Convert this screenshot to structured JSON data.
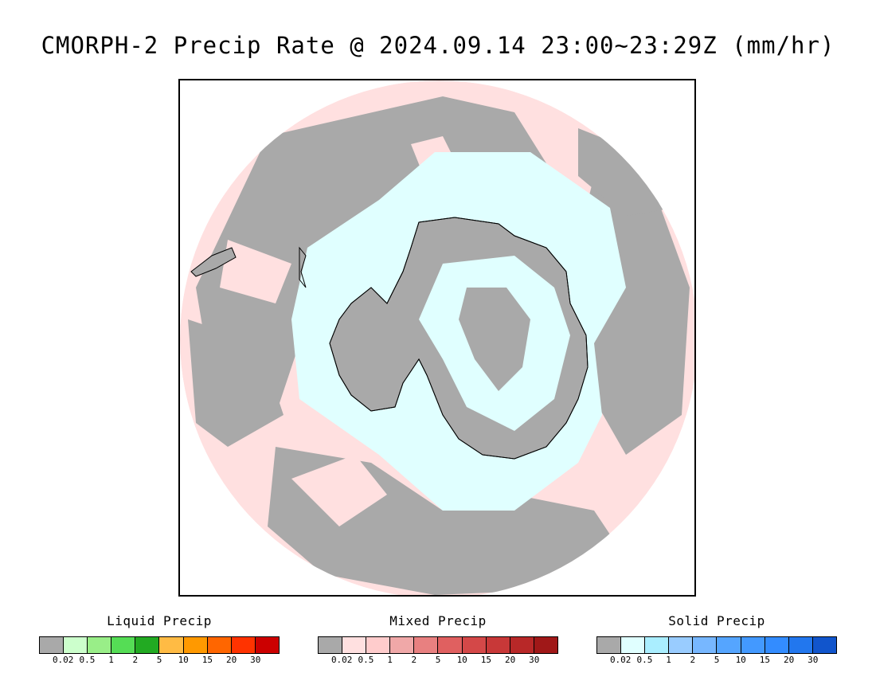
{
  "title": "CMORPH-2 Precip Rate @ 2024.09.14 23:00~23:29Z (mm/hr)",
  "map": {
    "colors": {
      "no_precip": "#a9a9a9",
      "mixed_light": "#ffe0e0",
      "solid_light": "#e0ffff",
      "coast": "#000000",
      "liquid_trace": "#66ee66"
    }
  },
  "legends": [
    {
      "title": "Liquid Precip",
      "colors": [
        "#a9a9a9",
        "#ccffcc",
        "#99ee88",
        "#55dd55",
        "#22aa22",
        "#ffbb44",
        "#ff9900",
        "#ff6600",
        "#ff3300",
        "#cc0000"
      ],
      "ticks": [
        "0.02",
        "0.5",
        "1",
        "2",
        "5",
        "10",
        "15",
        "20",
        "30"
      ]
    },
    {
      "title": "Mixed Precip",
      "colors": [
        "#a9a9a9",
        "#ffe0e0",
        "#ffcccc",
        "#f0a8a8",
        "#e88080",
        "#e06060",
        "#d44848",
        "#c83838",
        "#b82828",
        "#a01818"
      ],
      "ticks": [
        "0.02",
        "0.5",
        "1",
        "2",
        "5",
        "10",
        "15",
        "20",
        "30"
      ]
    },
    {
      "title": "Solid Precip",
      "colors": [
        "#a9a9a9",
        "#e0ffff",
        "#aaeeff",
        "#99ccff",
        "#77b7ff",
        "#55a5ff",
        "#4399ff",
        "#338cff",
        "#2277ee",
        "#1155cc"
      ],
      "ticks": [
        "0.02",
        "0.5",
        "1",
        "2",
        "5",
        "10",
        "15",
        "20",
        "30"
      ]
    }
  ]
}
